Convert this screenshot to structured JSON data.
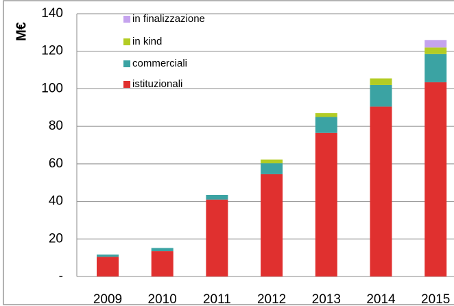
{
  "chart_data": {
    "type": "stacked_bar",
    "y_label": "M€",
    "categories": [
      "2009",
      "2010",
      "2011",
      "2012",
      "2013",
      "2014",
      "2015"
    ],
    "series": [
      {
        "name": "istituzionali",
        "color": "#e0302f",
        "values": [
          10.5,
          13.5,
          41,
          54.5,
          76.5,
          90.5,
          103.5
        ]
      },
      {
        "name": "commerciali",
        "color": "#3ba3a3",
        "values": [
          1.2,
          1.7,
          2.5,
          5.8,
          8.5,
          11.5,
          15
        ]
      },
      {
        "name": "in kind",
        "color": "#b3cc24",
        "values": [
          0,
          0,
          0,
          2,
          2,
          3.5,
          3.5
        ]
      },
      {
        "name": "in finalizzazione",
        "color": "#c5a3ee",
        "values": [
          0,
          0,
          0,
          0,
          0,
          0,
          4
        ]
      }
    ],
    "ylim": [
      0,
      140
    ],
    "yticks": [
      {
        "value": 0,
        "label": "-"
      },
      20,
      40,
      60,
      80,
      100,
      120,
      140
    ],
    "grid": true,
    "legend": "upper left"
  }
}
